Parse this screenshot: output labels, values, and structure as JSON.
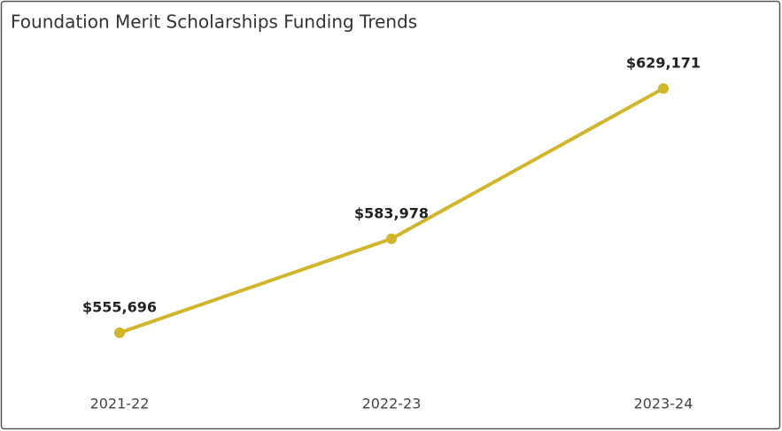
{
  "chart_data": {
    "type": "line",
    "title": "Foundation Merit Scholarships Funding Trends",
    "categories": [
      "2021-22",
      "2022-23",
      "2023-24"
    ],
    "values": [
      555696,
      583978,
      629171
    ],
    "value_labels": [
      "$555,696",
      "$583,978",
      "$629,171"
    ],
    "color": "#d1b62c"
  }
}
